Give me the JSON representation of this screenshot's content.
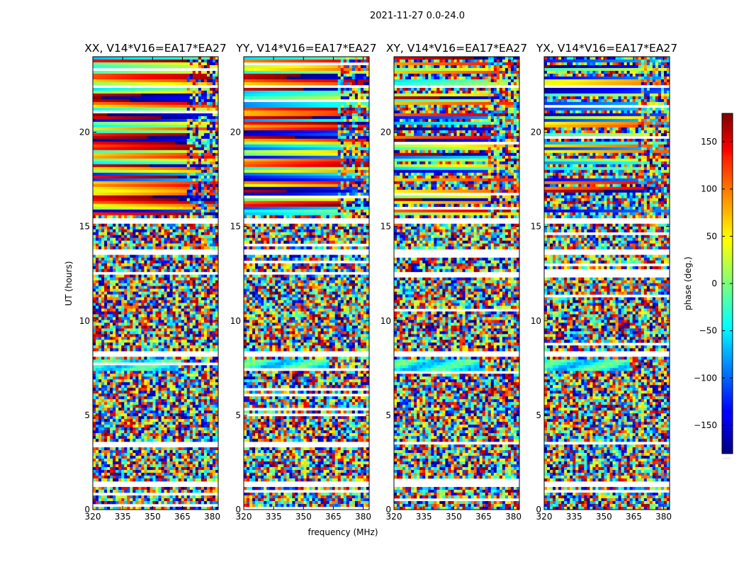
{
  "figure": {
    "suptitle": "2021-11-27 0.0-24.0",
    "xlabel": "frequency (MHz)",
    "ylabel": "UT (hours)",
    "colorbar_label": "phase (deg.)",
    "colorbar_footnote": "......"
  },
  "chart_data": {
    "type": "heatmap",
    "colormap": "jet",
    "xlim": [
      320,
      383
    ],
    "ylim": [
      0,
      24
    ],
    "x_ticks": [
      "320",
      "335",
      "350",
      "365",
      "380"
    ],
    "y_ticks": [
      "0",
      "5",
      "10",
      "15",
      "20"
    ],
    "clim": [
      -180,
      180
    ],
    "colorbar_ticks": [
      "−150",
      "−100",
      "−50",
      "0",
      "50",
      "100",
      "150"
    ],
    "panels": [
      {
        "title": "XX, V14*V16=EA17*EA27",
        "coherent_from_ut": 15.6
      },
      {
        "title": "YY, V14*V16=EA17*EA27",
        "coherent_from_ut": 15.6
      },
      {
        "title": "XY, V14*V16=EA17*EA27",
        "coherent_from_ut": 15.6
      },
      {
        "title": "YX, V14*V16=EA17*EA27",
        "coherent_from_ut": 15.6
      }
    ],
    "flagged_ut_gaps": [
      [
        1.2,
        1.55
      ],
      [
        3.4,
        3.55
      ],
      [
        8.1,
        8.35
      ],
      [
        12.4,
        12.6
      ],
      [
        13.55,
        13.75
      ],
      [
        15.1,
        15.5
      ],
      [
        22.3,
        22.45
      ]
    ]
  }
}
